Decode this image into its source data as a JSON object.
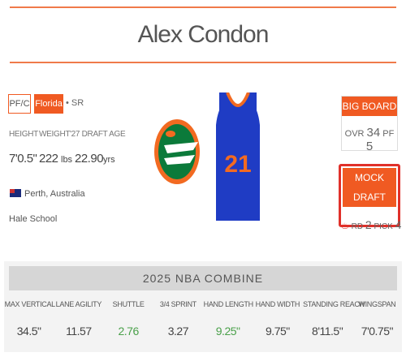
{
  "player": {
    "name": "Alex Condon",
    "position": "PF/C",
    "school": "Florida",
    "class": "• SR",
    "bio_labels": [
      "HEIGHT",
      "WEIGHT",
      "'27 DRAFT AGE"
    ],
    "height": "7'0.5\"",
    "weight": "222",
    "weight_unit": "lbs",
    "draft_age": "22.90",
    "draft_age_unit": "yrs",
    "hometown": "Perth, Australia",
    "high_school": "Hale School",
    "jersey_number": "21"
  },
  "big_board": {
    "title": "BIG BOARD",
    "overall_label": "OVR",
    "overall": "34",
    "position_label": "PF",
    "position_rank": "5"
  },
  "mock_draft": {
    "title": "MOCK DRAFT",
    "round_label": "RD",
    "round": "2",
    "pick_label": "PICK",
    "pick": "4"
  },
  "combine": {
    "title": "2025 NBA COMBINE",
    "columns": [
      "MAX VERTICAL",
      "LANE AGILITY",
      "SHUTTLE",
      "3/4 SPRINT",
      "HAND LENGTH",
      "HAND WIDTH",
      "STANDING REACH",
      "WINGSPAN"
    ],
    "values": [
      "34.5\"",
      "11.57",
      "2.76",
      "3.27",
      "9.25\"",
      "9.75\"",
      "8'11.5\"",
      "7'0.75\""
    ],
    "highlighted": [
      false,
      false,
      true,
      false,
      true,
      false,
      false,
      false
    ],
    "highlight_color": "#4aa04a"
  }
}
